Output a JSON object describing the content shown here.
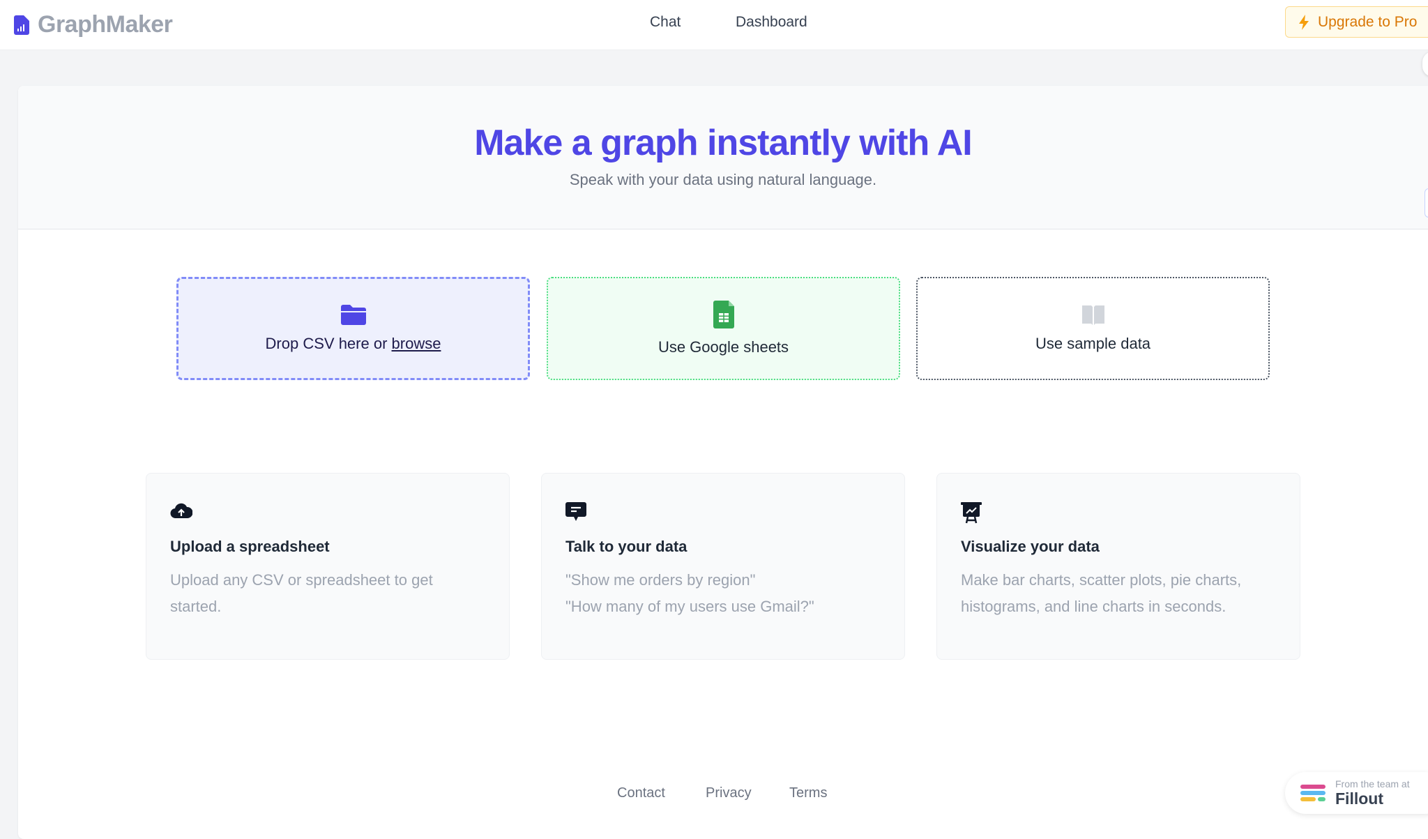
{
  "header": {
    "app_name": "GraphMaker",
    "nav": [
      {
        "label": "Chat"
      },
      {
        "label": "Dashboard"
      }
    ],
    "upgrade_label": "Upgrade to Pro"
  },
  "hero": {
    "title": "Make a graph instantly with AI",
    "subtitle": "Speak with your data using natural language."
  },
  "sources": {
    "csv_prefix": "Drop CSV here or ",
    "csv_link": "browse",
    "google": "Use Google sheets",
    "sample": "Use sample data"
  },
  "features": [
    {
      "icon": "cloud-upload-icon",
      "title": "Upload a spreadsheet",
      "lines": [
        "Upload any CSV or spreadsheet to get started."
      ]
    },
    {
      "icon": "chat-bubble-icon",
      "title": "Talk to your data",
      "lines": [
        "\"Show me orders by region\"",
        "\"How many of my users use Gmail?\""
      ]
    },
    {
      "icon": "presentation-chart-icon",
      "title": "Visualize your data",
      "lines": [
        "Make bar charts, scatter plots, pie charts, histograms, and line charts in seconds."
      ]
    }
  ],
  "footer": {
    "links": [
      "Contact",
      "Privacy",
      "Terms"
    ]
  },
  "badge": {
    "small": "From the team at",
    "brand": "Fillout"
  },
  "colors": {
    "accent": "#4f46e5",
    "upgrade": "#d97706",
    "sheets": "#34a853"
  }
}
